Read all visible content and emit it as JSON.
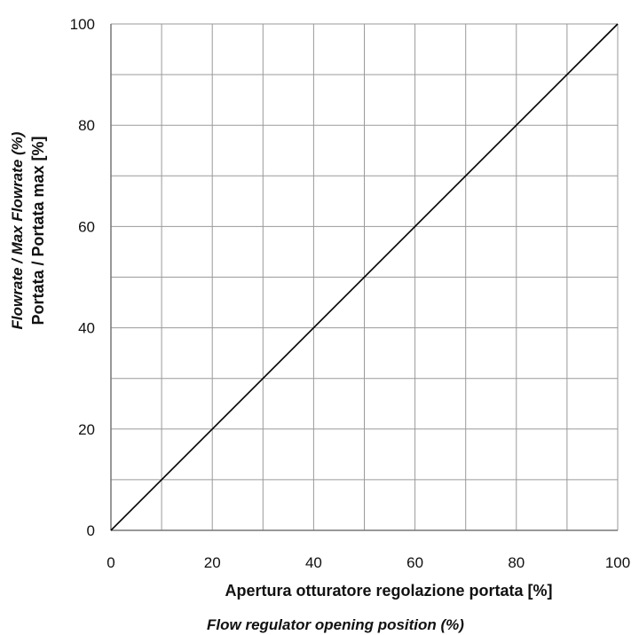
{
  "chart_data": {
    "type": "line",
    "xlabel": "Apertura otturatore regolazione portata [%]",
    "xlabel_secondary": "Flow regulator opening position (%)",
    "ylabel": "Portata / Portata max [%]",
    "ylabel_secondary": "Flowrate / Max Flowrate (%)",
    "xlim": [
      0,
      100
    ],
    "ylim": [
      0,
      100
    ],
    "x_ticks": [
      "0",
      "20",
      "40",
      "60",
      "80",
      "100"
    ],
    "y_ticks": [
      "0",
      "20",
      "40",
      "60",
      "80",
      "100"
    ],
    "grid": true,
    "grid_step": 10,
    "series": [
      {
        "x": [
          0,
          100
        ],
        "y": [
          0,
          100
        ],
        "color": "#000000"
      }
    ]
  }
}
